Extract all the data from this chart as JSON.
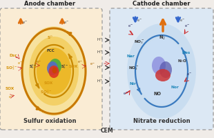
{
  "bg_color": "#f0ece8",
  "anode_bg": "#faecd4",
  "cathode_bg": "#dce8f4",
  "title_anode": "Anode chamber",
  "title_cathode": "Cathode chamber",
  "label_anode": "Sulfur oxidation",
  "label_cathode": "Nitrate reduction",
  "label_cem": "CEM",
  "gold": "#d4920a",
  "gold_light": "#f0c840",
  "gold_dark": "#c87800",
  "blue_arrow": "#3a7abf",
  "blue_light": "#a8c8e8",
  "red_dash": "#cc2222",
  "black": "#222222",
  "cyan_label": "#2288bb"
}
